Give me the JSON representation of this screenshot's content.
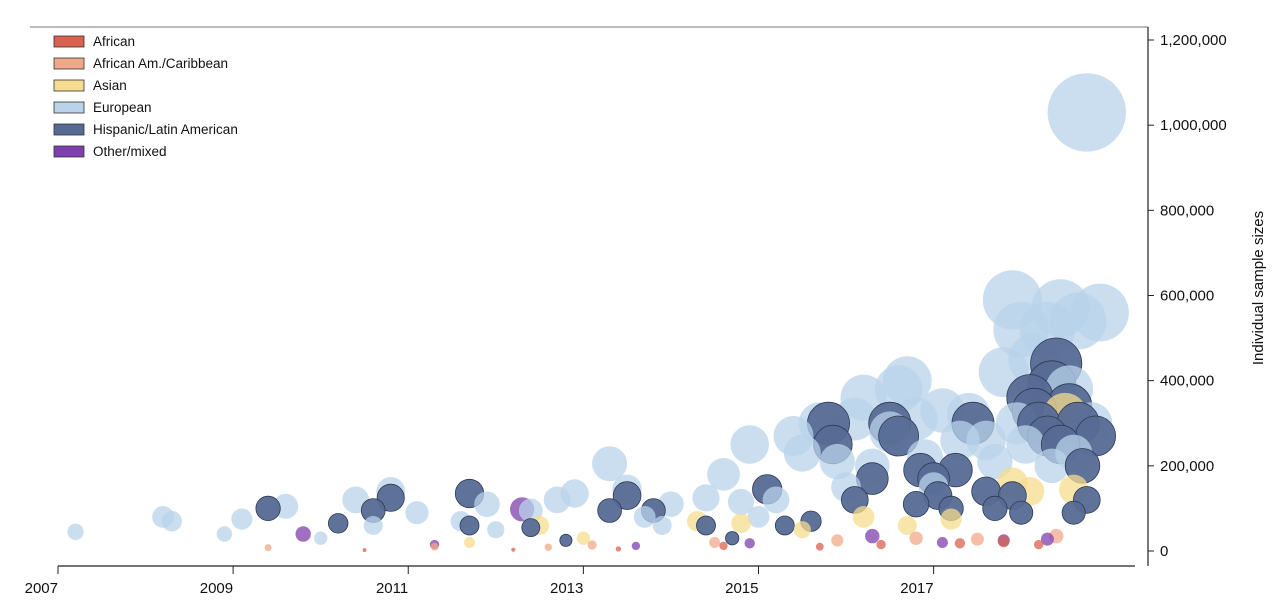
{
  "chart_data": {
    "type": "scatter",
    "title": "",
    "xlabel": "",
    "ylabel": "Individual sample sizes",
    "xlim": [
      2007,
      2019.3
    ],
    "ylim": [
      0,
      1200000
    ],
    "x_ticks": [
      "2007",
      "2009",
      "2011",
      "2013",
      "2015",
      "2017"
    ],
    "y_ticks": [
      "0",
      "200,000",
      "400,000",
      "600,000",
      "800,000",
      "1,000,000",
      "1,200,000"
    ],
    "y_tick_values": [
      0,
      200000,
      400000,
      600000,
      800000,
      1000000,
      1200000
    ],
    "x_tick_values": [
      2007,
      2009,
      2011,
      2013,
      2015,
      2017
    ],
    "legend_position": "top-left",
    "grid": false,
    "series": [
      {
        "name": "African",
        "color": "#d9624f",
        "points": [
          [
            2012.2,
            3000
          ],
          [
            2014.6,
            12000
          ],
          [
            2016.4,
            15000
          ],
          [
            2017.3,
            18000
          ],
          [
            2017.8,
            22000
          ],
          [
            2018.2,
            15000
          ],
          [
            2010.5,
            2000
          ],
          [
            2013.4,
            5000
          ],
          [
            2015.7,
            10000
          ]
        ]
      },
      {
        "name": "African Am./Caribbean",
        "color": "#f0a988",
        "points": [
          [
            2009.4,
            8000
          ],
          [
            2011.3,
            10000
          ],
          [
            2013.1,
            14000
          ],
          [
            2014.5,
            20000
          ],
          [
            2015.9,
            25000
          ],
          [
            2016.8,
            30000
          ],
          [
            2017.5,
            28000
          ],
          [
            2018.4,
            35000
          ],
          [
            2012.6,
            9000
          ]
        ]
      },
      {
        "name": "Asian",
        "color": "#f6dc8e",
        "points": [
          [
            2012.5,
            60000
          ],
          [
            2014.3,
            70000
          ],
          [
            2014.8,
            65000
          ],
          [
            2016.2,
            80000
          ],
          [
            2016.7,
            60000
          ],
          [
            2017.2,
            75000
          ],
          [
            2017.9,
            160000
          ],
          [
            2018.1,
            140000
          ],
          [
            2018.6,
            145000
          ],
          [
            2018.5,
            320000
          ],
          [
            2013.0,
            30000
          ],
          [
            2015.5,
            50000
          ],
          [
            2011.7,
            20000
          ]
        ]
      },
      {
        "name": "European",
        "color": "#b8d3ea",
        "points": [
          [
            2007.2,
            45000
          ],
          [
            2008.2,
            80000
          ],
          [
            2008.3,
            70000
          ],
          [
            2008.9,
            40000
          ],
          [
            2009.1,
            75000
          ],
          [
            2009.4,
            100000
          ],
          [
            2009.6,
            105000
          ],
          [
            2010.4,
            120000
          ],
          [
            2010.8,
            140000
          ],
          [
            2011.1,
            90000
          ],
          [
            2011.6,
            70000
          ],
          [
            2011.9,
            110000
          ],
          [
            2012.4,
            95000
          ],
          [
            2012.7,
            120000
          ],
          [
            2012.9,
            135000
          ],
          [
            2013.3,
            205000
          ],
          [
            2013.5,
            145000
          ],
          [
            2013.7,
            80000
          ],
          [
            2014.0,
            110000
          ],
          [
            2014.4,
            125000
          ],
          [
            2014.6,
            180000
          ],
          [
            2014.8,
            115000
          ],
          [
            2014.9,
            250000
          ],
          [
            2015.2,
            120000
          ],
          [
            2015.4,
            270000
          ],
          [
            2015.5,
            230000
          ],
          [
            2015.7,
            300000
          ],
          [
            2015.9,
            210000
          ],
          [
            2016.0,
            150000
          ],
          [
            2016.1,
            310000
          ],
          [
            2016.2,
            360000
          ],
          [
            2016.3,
            200000
          ],
          [
            2016.5,
            280000
          ],
          [
            2016.6,
            380000
          ],
          [
            2016.7,
            400000
          ],
          [
            2016.8,
            310000
          ],
          [
            2016.9,
            220000
          ],
          [
            2017.0,
            150000
          ],
          [
            2017.1,
            330000
          ],
          [
            2017.3,
            260000
          ],
          [
            2017.4,
            320000
          ],
          [
            2017.6,
            260000
          ],
          [
            2017.7,
            210000
          ],
          [
            2017.8,
            420000
          ],
          [
            2017.9,
            590000
          ],
          [
            2017.95,
            300000
          ],
          [
            2018.0,
            520000
          ],
          [
            2018.05,
            250000
          ],
          [
            2018.15,
            450000
          ],
          [
            2018.3,
            520000
          ],
          [
            2018.35,
            200000
          ],
          [
            2018.45,
            570000
          ],
          [
            2018.55,
            380000
          ],
          [
            2018.6,
            230000
          ],
          [
            2018.65,
            540000
          ],
          [
            2018.75,
            1030000
          ],
          [
            2018.9,
            560000
          ],
          [
            2018.8,
            300000
          ],
          [
            2010.0,
            30000
          ],
          [
            2010.6,
            60000
          ],
          [
            2012.0,
            50000
          ],
          [
            2013.9,
            60000
          ],
          [
            2015.0,
            80000
          ]
        ]
      },
      {
        "name": "Hispanic/Latin American",
        "color": "#566a93",
        "points": [
          [
            2009.4,
            100000
          ],
          [
            2010.2,
            65000
          ],
          [
            2010.6,
            95000
          ],
          [
            2010.8,
            125000
          ],
          [
            2011.7,
            135000
          ],
          [
            2011.7,
            60000
          ],
          [
            2012.4,
            55000
          ],
          [
            2013.3,
            95000
          ],
          [
            2013.5,
            130000
          ],
          [
            2013.8,
            95000
          ],
          [
            2014.4,
            60000
          ],
          [
            2015.1,
            145000
          ],
          [
            2015.3,
            60000
          ],
          [
            2015.6,
            70000
          ],
          [
            2015.8,
            300000
          ],
          [
            2015.85,
            250000
          ],
          [
            2016.1,
            120000
          ],
          [
            2016.3,
            170000
          ],
          [
            2016.5,
            300000
          ],
          [
            2016.6,
            270000
          ],
          [
            2016.8,
            110000
          ],
          [
            2016.85,
            190000
          ],
          [
            2017.0,
            170000
          ],
          [
            2017.05,
            130000
          ],
          [
            2017.2,
            100000
          ],
          [
            2017.25,
            190000
          ],
          [
            2017.45,
            300000
          ],
          [
            2017.6,
            140000
          ],
          [
            2017.7,
            100000
          ],
          [
            2017.9,
            130000
          ],
          [
            2018.0,
            90000
          ],
          [
            2018.1,
            360000
          ],
          [
            2018.15,
            330000
          ],
          [
            2018.2,
            300000
          ],
          [
            2018.3,
            270000
          ],
          [
            2018.35,
            390000
          ],
          [
            2018.4,
            440000
          ],
          [
            2018.45,
            250000
          ],
          [
            2018.55,
            340000
          ],
          [
            2018.65,
            300000
          ],
          [
            2018.7,
            200000
          ],
          [
            2018.75,
            120000
          ],
          [
            2018.85,
            270000
          ],
          [
            2018.6,
            90000
          ],
          [
            2014.7,
            30000
          ],
          [
            2012.8,
            25000
          ]
        ]
      },
      {
        "name": "Other/mixed",
        "color": "#7f3fae",
        "points": [
          [
            2012.3,
            98000
          ],
          [
            2009.8,
            40000
          ],
          [
            2011.3,
            15000
          ],
          [
            2013.6,
            12000
          ],
          [
            2014.9,
            18000
          ],
          [
            2016.3,
            35000
          ],
          [
            2017.1,
            20000
          ],
          [
            2017.8,
            25000
          ],
          [
            2018.3,
            28000
          ]
        ]
      }
    ]
  }
}
